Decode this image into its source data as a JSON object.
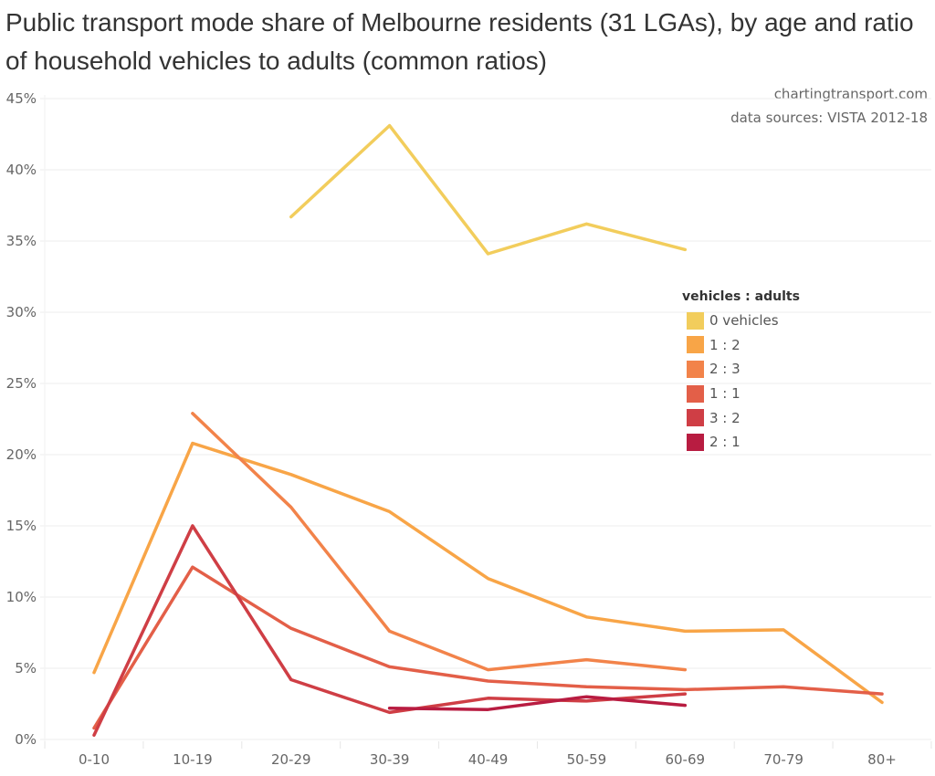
{
  "title": "Public transport mode share of Melbourne residents (31 LGAs), by age and ratio of household vehicles to adults (common ratios)",
  "credits": [
    "chartingtransport.com",
    "data sources: VISTA 2012-18"
  ],
  "chart_data": {
    "type": "line",
    "title": "Public transport mode share of Melbourne residents (31 LGAs), by age and ratio of household vehicles to adults (common ratios)",
    "xlabel": "",
    "ylabel": "",
    "categories": [
      "0-10",
      "10-19",
      "20-29",
      "30-39",
      "40-49",
      "50-59",
      "60-69",
      "70-79",
      "80+"
    ],
    "ylim": [
      0,
      45
    ],
    "yticks": [
      0,
      5,
      10,
      15,
      20,
      25,
      30,
      35,
      40,
      45
    ],
    "ytick_labels": [
      "0%",
      "5%",
      "10%",
      "15%",
      "20%",
      "25%",
      "30%",
      "35%",
      "40%",
      "45%"
    ],
    "grid": true,
    "legend_title": "vehicles : adults",
    "legend_position": "right",
    "series": [
      {
        "name": "0 vehicles",
        "color": "#f2cd5c",
        "values": [
          null,
          null,
          36.7,
          43.1,
          34.1,
          36.2,
          34.4,
          null,
          null
        ]
      },
      {
        "name": "1 : 2",
        "color": "#f8a547",
        "values": [
          4.7,
          20.8,
          18.6,
          16.0,
          11.3,
          8.6,
          7.6,
          7.7,
          2.6
        ]
      },
      {
        "name": "2 : 3",
        "color": "#f2834a",
        "values": [
          null,
          22.9,
          16.3,
          7.6,
          4.9,
          5.6,
          4.9,
          null,
          null
        ]
      },
      {
        "name": "1 : 1",
        "color": "#e35f48",
        "values": [
          0.8,
          12.1,
          7.8,
          5.1,
          4.1,
          3.7,
          3.5,
          3.7,
          3.2
        ]
      },
      {
        "name": "3 : 2",
        "color": "#cf3e45",
        "values": [
          0.3,
          15.0,
          4.2,
          1.9,
          2.9,
          2.7,
          3.2,
          null,
          null
        ]
      },
      {
        "name": "2 : 1",
        "color": "#b81c41",
        "values": [
          null,
          null,
          null,
          2.2,
          2.1,
          3.0,
          2.4,
          null,
          null
        ]
      }
    ]
  }
}
